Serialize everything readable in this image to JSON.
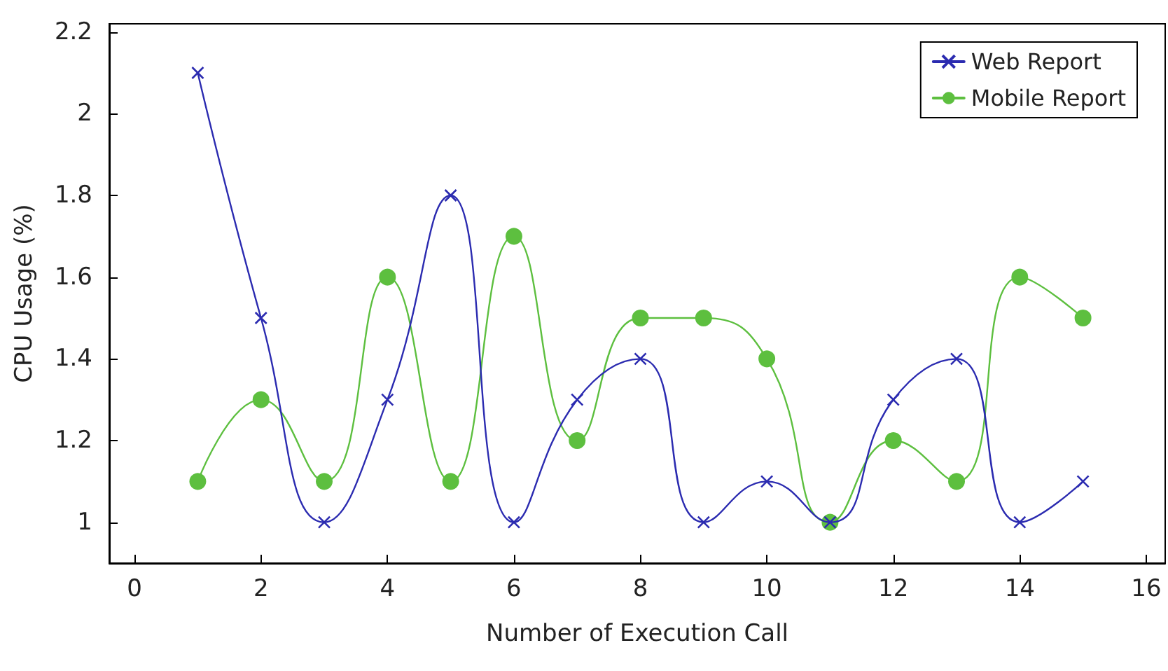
{
  "chart_data": {
    "type": "line",
    "xlabel": "Number of Execution Call",
    "ylabel": "CPU Usage (%)",
    "x": [
      1,
      2,
      3,
      4,
      5,
      6,
      7,
      8,
      9,
      10,
      11,
      12,
      13,
      14,
      15
    ],
    "series": [
      {
        "name": "Web Report",
        "color": "#2b2bb0",
        "marker": "cross",
        "values": [
          2.1,
          1.5,
          1.0,
          1.3,
          1.8,
          1.0,
          1.3,
          1.4,
          1.0,
          1.1,
          1.0,
          1.3,
          1.4,
          1.0,
          1.1
        ]
      },
      {
        "name": "Mobile Report",
        "color": "#5dbf3f",
        "marker": "circle",
        "values": [
          1.1,
          1.3,
          1.1,
          1.6,
          1.1,
          1.7,
          1.2,
          1.5,
          1.5,
          1.4,
          1.0,
          1.2,
          1.1,
          1.6,
          1.5
        ]
      }
    ],
    "xlim": [
      -0.4,
      16.3
    ],
    "xticks": [
      0,
      2,
      4,
      6,
      8,
      10,
      12,
      14,
      16
    ],
    "ylim": [
      0.9,
      2.22
    ],
    "yticks": [
      1,
      1.2,
      1.4,
      1.6,
      1.8,
      2,
      2.2
    ],
    "grid": false,
    "legend": "top right",
    "line_style": "solid"
  }
}
